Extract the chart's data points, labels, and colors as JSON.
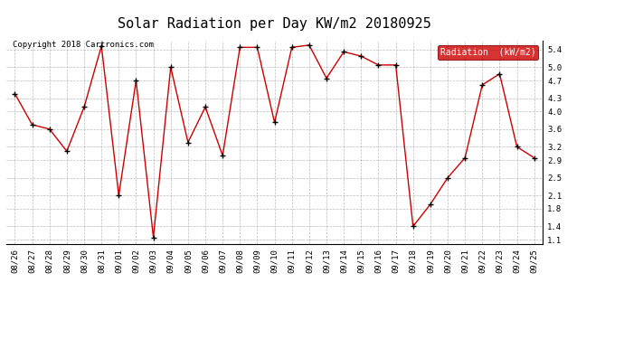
{
  "title": "Solar Radiation per Day KW/m2 20180925",
  "copyright": "Copyright 2018 Cartronics.com",
  "legend_label": "Radiation  (kW/m2)",
  "dates": [
    "08/26",
    "08/27",
    "08/28",
    "08/29",
    "08/30",
    "08/31",
    "09/01",
    "09/02",
    "09/03",
    "09/04",
    "09/05",
    "09/06",
    "09/07",
    "09/08",
    "09/09",
    "09/10",
    "09/11",
    "09/12",
    "09/13",
    "09/14",
    "09/15",
    "09/16",
    "09/17",
    "09/18",
    "09/19",
    "09/20",
    "09/21",
    "09/22",
    "09/23",
    "09/24",
    "09/25"
  ],
  "values": [
    4.4,
    3.7,
    3.6,
    3.1,
    4.1,
    5.48,
    2.1,
    4.7,
    1.15,
    5.0,
    3.3,
    4.1,
    3.0,
    5.45,
    5.45,
    3.75,
    5.45,
    5.5,
    4.75,
    5.35,
    5.25,
    5.05,
    5.05,
    1.4,
    1.9,
    2.5,
    2.95,
    4.6,
    4.85,
    3.2,
    2.95
  ],
  "line_color": "#cc0000",
  "marker_color": "#000000",
  "background_color": "#ffffff",
  "grid_color": "#aaaaaa",
  "ylim": [
    1.0,
    5.6
  ],
  "yticks": [
    1.1,
    1.4,
    1.8,
    2.1,
    2.5,
    2.9,
    3.2,
    3.6,
    4.0,
    4.3,
    4.7,
    5.0,
    5.4
  ],
  "legend_bg": "#cc0000",
  "legend_text_color": "#ffffff",
  "title_fontsize": 11,
  "copyright_fontsize": 6.5,
  "tick_fontsize": 6.5,
  "legend_fontsize": 7
}
